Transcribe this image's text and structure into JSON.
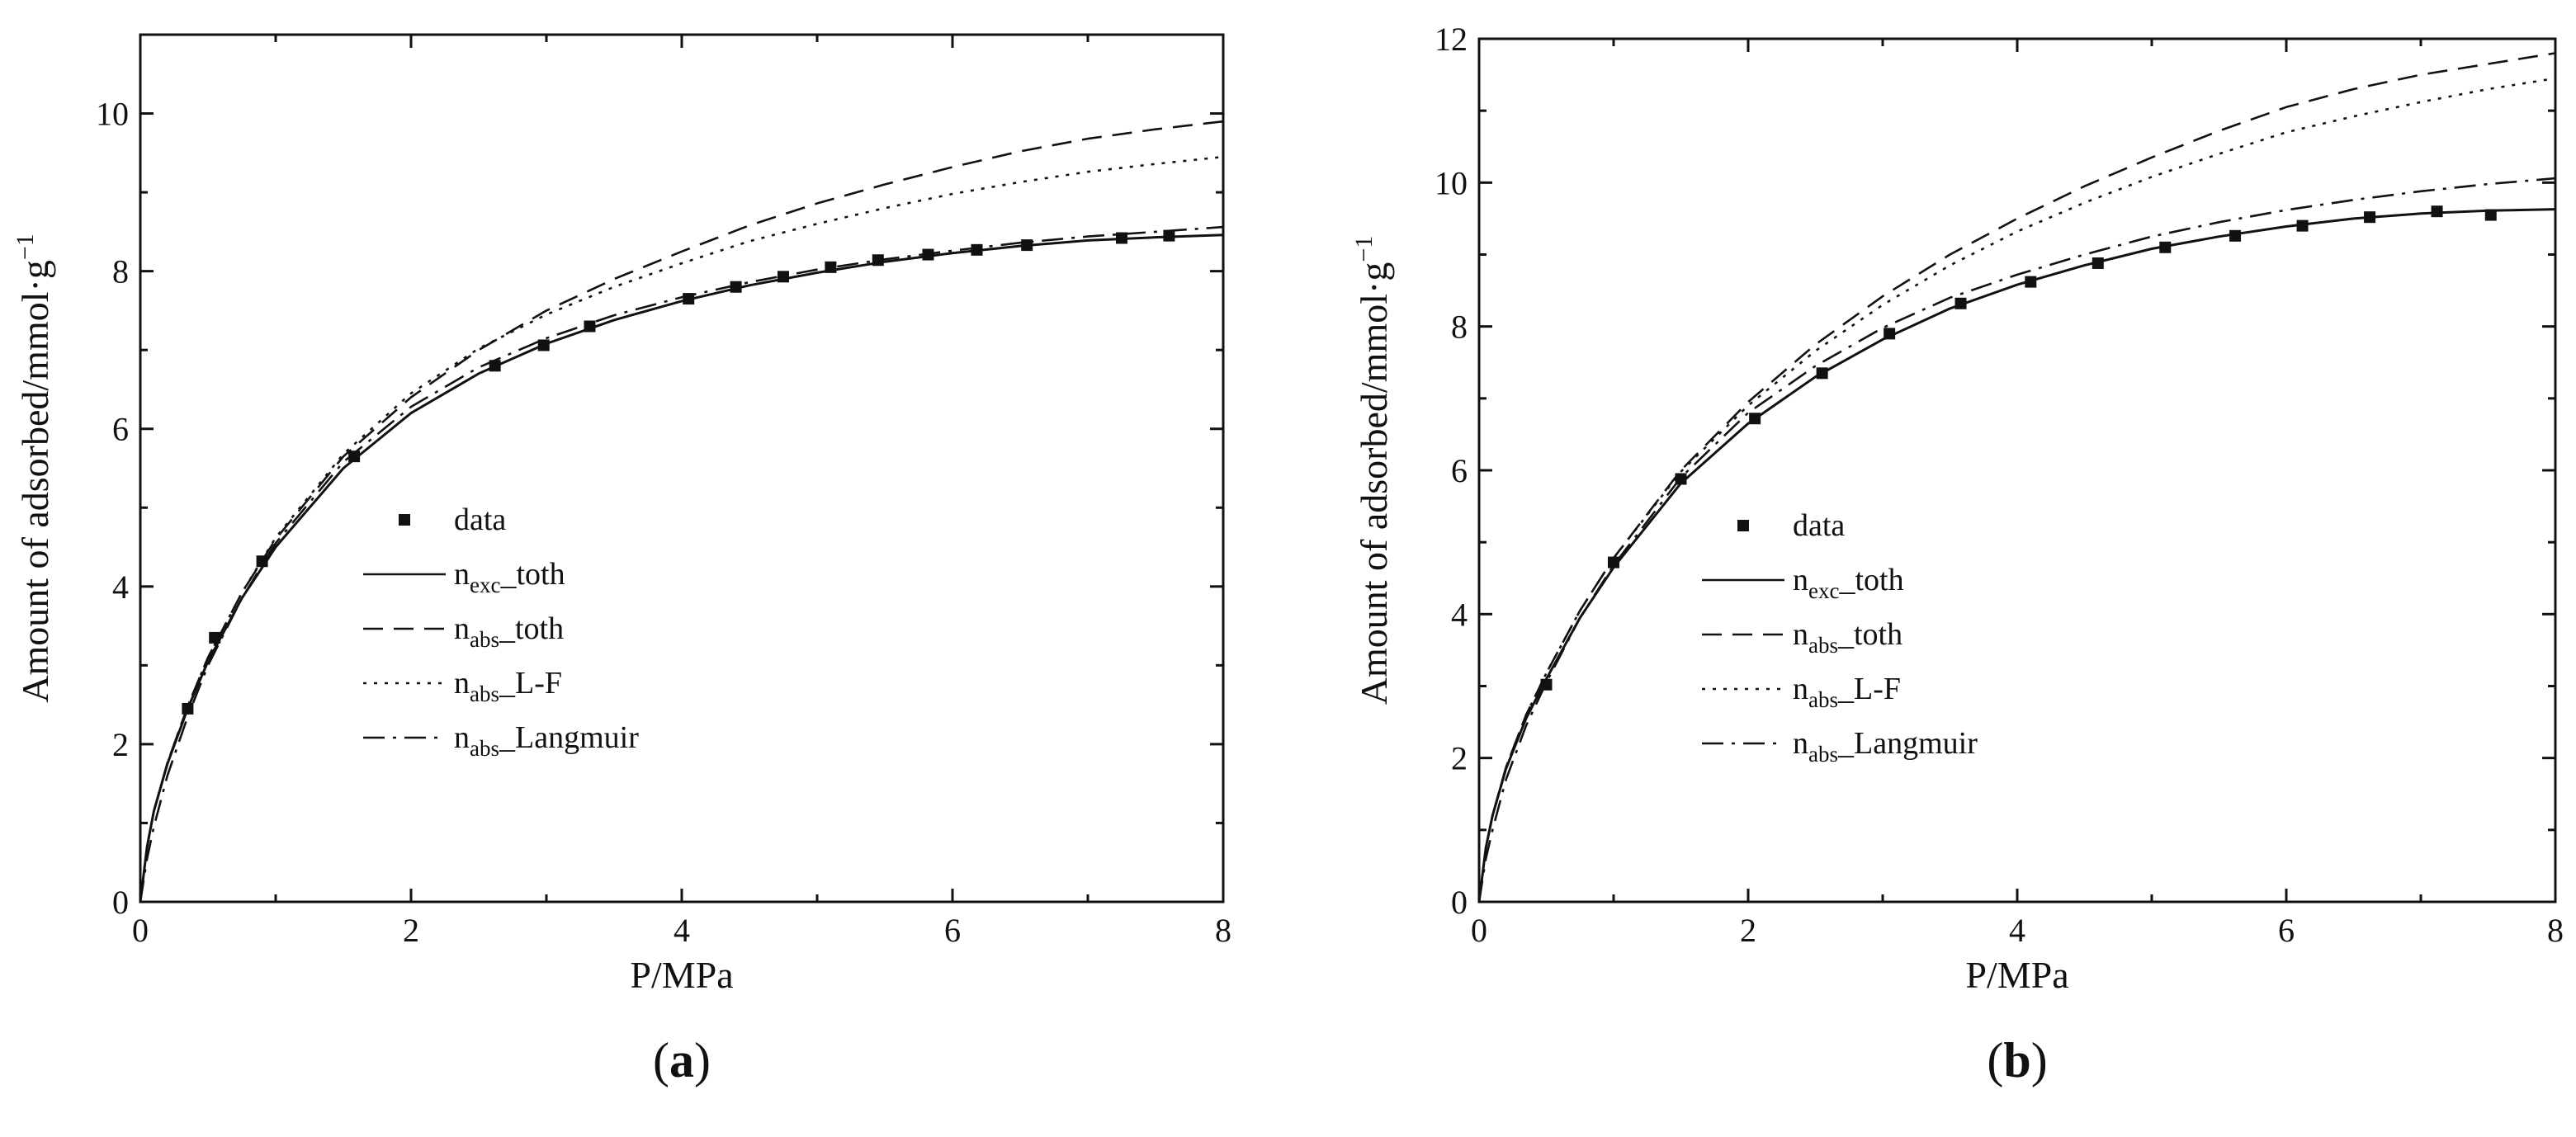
{
  "figure": {
    "panels": [
      {
        "panel_label": "(a)",
        "panel_label_letter": "a",
        "xlabel": "P/MPa",
        "ylabel_prefix": "Amount of adsorbed/mmol·g",
        "ylabel_superscript": "−1"
      },
      {
        "panel_label": "(b)",
        "panel_label_letter": "b",
        "xlabel": "P/MPa",
        "ylabel_prefix": "Amount of adsorbed/mmol·g",
        "ylabel_superscript": "−1"
      }
    ]
  },
  "legend": {
    "entries": [
      {
        "key": "data",
        "main": "data",
        "sub": "",
        "suffix": "",
        "style": "marker"
      },
      {
        "key": "exc_toth",
        "main": "n",
        "sub": "exc",
        "suffix": "_toth",
        "style": "solid"
      },
      {
        "key": "abs_toth",
        "main": "n",
        "sub": "abs",
        "suffix": "_toth",
        "style": "dashed"
      },
      {
        "key": "abs_lf",
        "main": "n",
        "sub": "abs",
        "suffix": "_L-F",
        "style": "dotted"
      },
      {
        "key": "abs_langmuir",
        "main": "n",
        "sub": "abs",
        "suffix": "_Langmuir",
        "style": "dashdot"
      }
    ]
  },
  "colors": {
    "ink": "#111111",
    "background": "#ffffff"
  },
  "chart_data": [
    {
      "type": "scatter",
      "panel": "a",
      "title": "",
      "xlabel": "P/MPa",
      "ylabel": "Amount of adsorbed/mmol·g−1",
      "xlim": [
        0,
        8
      ],
      "ylim": [
        0,
        11
      ],
      "xticks": [
        0,
        2,
        4,
        6,
        8
      ],
      "yticks": [
        0,
        2,
        4,
        6,
        8,
        10
      ],
      "legend_position": "center-left",
      "series": [
        {
          "name": "data",
          "style": "marker",
          "x": [
            0.35,
            0.55,
            0.9,
            1.58,
            2.62,
            2.98,
            3.32,
            4.05,
            4.4,
            4.75,
            5.1,
            5.45,
            5.82,
            6.18,
            6.55,
            7.25,
            7.6
          ],
          "y": [
            2.45,
            3.35,
            4.32,
            5.65,
            6.8,
            7.06,
            7.3,
            7.65,
            7.8,
            7.93,
            8.05,
            8.14,
            8.21,
            8.27,
            8.33,
            8.42,
            8.45
          ]
        },
        {
          "name": "n_exc_toth",
          "style": "solid",
          "x": [
            0,
            0.05,
            0.1,
            0.2,
            0.35,
            0.5,
            0.75,
            1.0,
            1.5,
            2.0,
            2.5,
            3.0,
            3.5,
            4.0,
            4.5,
            5.0,
            5.5,
            6.0,
            6.5,
            7.0,
            7.5,
            8.0
          ],
          "y": [
            0,
            0.7,
            1.15,
            1.75,
            2.45,
            3.05,
            3.85,
            4.5,
            5.5,
            6.2,
            6.7,
            7.08,
            7.38,
            7.62,
            7.82,
            7.98,
            8.12,
            8.23,
            8.32,
            8.39,
            8.43,
            8.46
          ]
        },
        {
          "name": "n_abs_toth",
          "style": "dashed",
          "x": [
            0,
            0.05,
            0.1,
            0.2,
            0.35,
            0.5,
            0.75,
            1.0,
            1.5,
            2.0,
            2.5,
            3.0,
            3.5,
            4.0,
            4.5,
            5.0,
            5.5,
            6.0,
            6.5,
            7.0,
            7.5,
            8.0
          ],
          "y": [
            0,
            0.7,
            1.15,
            1.76,
            2.48,
            3.1,
            3.92,
            4.6,
            5.65,
            6.4,
            7.0,
            7.5,
            7.9,
            8.25,
            8.58,
            8.86,
            9.1,
            9.32,
            9.52,
            9.68,
            9.8,
            9.9
          ]
        },
        {
          "name": "n_abs_L-F",
          "style": "dotted",
          "x": [
            0,
            0.05,
            0.1,
            0.2,
            0.35,
            0.5,
            0.75,
            1.0,
            1.5,
            2.0,
            2.5,
            3.0,
            3.5,
            4.0,
            4.5,
            5.0,
            5.5,
            6.0,
            6.5,
            7.0,
            7.5,
            8.0
          ],
          "y": [
            0,
            0.7,
            1.15,
            1.76,
            2.48,
            3.1,
            3.92,
            4.62,
            5.68,
            6.45,
            7.02,
            7.45,
            7.8,
            8.1,
            8.38,
            8.6,
            8.8,
            8.98,
            9.13,
            9.26,
            9.36,
            9.45
          ]
        },
        {
          "name": "n_abs_Langmuir",
          "style": "dashdot",
          "x": [
            0,
            0.05,
            0.1,
            0.2,
            0.35,
            0.5,
            0.75,
            1.0,
            1.5,
            2.0,
            2.5,
            3.0,
            3.5,
            4.0,
            4.5,
            5.0,
            5.5,
            6.0,
            6.5,
            7.0,
            7.5,
            8.0
          ],
          "y": [
            0,
            0.55,
            0.95,
            1.6,
            2.35,
            3.0,
            3.85,
            4.55,
            5.58,
            6.28,
            6.78,
            7.15,
            7.44,
            7.67,
            7.86,
            8.02,
            8.15,
            8.26,
            8.36,
            8.44,
            8.5,
            8.56
          ]
        }
      ]
    },
    {
      "type": "scatter",
      "panel": "b",
      "title": "",
      "xlabel": "P/MPa",
      "ylabel": "Amount of adsorbed/mmol·g−1",
      "xlim": [
        0,
        8
      ],
      "ylim": [
        0,
        12
      ],
      "xticks": [
        0,
        2,
        4,
        6,
        8
      ],
      "yticks": [
        0,
        2,
        4,
        6,
        8,
        10,
        12
      ],
      "legend_position": "center",
      "series": [
        {
          "name": "data",
          "style": "marker",
          "x": [
            0.5,
            1.0,
            1.5,
            2.05,
            2.55,
            3.05,
            3.58,
            4.1,
            4.6,
            5.1,
            5.62,
            6.12,
            6.62,
            7.12,
            7.52
          ],
          "y": [
            3.02,
            4.72,
            5.88,
            6.72,
            7.35,
            7.9,
            8.32,
            8.62,
            8.88,
            9.1,
            9.26,
            9.4,
            9.52,
            9.6,
            9.55
          ]
        },
        {
          "name": "n_exc_toth",
          "style": "solid",
          "x": [
            0,
            0.05,
            0.1,
            0.2,
            0.35,
            0.5,
            0.75,
            1.0,
            1.5,
            2.0,
            2.5,
            3.0,
            3.5,
            4.0,
            4.5,
            5.0,
            5.5,
            6.0,
            6.5,
            7.0,
            7.5,
            8.0
          ],
          "y": [
            0,
            0.75,
            1.2,
            1.85,
            2.55,
            3.1,
            3.95,
            4.65,
            5.82,
            6.65,
            7.3,
            7.82,
            8.25,
            8.58,
            8.85,
            9.08,
            9.25,
            9.39,
            9.5,
            9.57,
            9.61,
            9.63
          ]
        },
        {
          "name": "n_abs_toth",
          "style": "dashed",
          "x": [
            0,
            0.05,
            0.1,
            0.2,
            0.35,
            0.5,
            0.75,
            1.0,
            1.5,
            2.0,
            2.5,
            3.0,
            3.5,
            4.0,
            4.5,
            5.0,
            5.5,
            6.0,
            6.5,
            7.0,
            7.5,
            8.0
          ],
          "y": [
            0,
            0.75,
            1.2,
            1.87,
            2.6,
            3.18,
            4.05,
            4.78,
            6.0,
            6.95,
            7.75,
            8.42,
            9.0,
            9.5,
            9.95,
            10.35,
            10.72,
            11.05,
            11.3,
            11.5,
            11.65,
            11.8
          ]
        },
        {
          "name": "n_abs_L-F",
          "style": "dotted",
          "x": [
            0,
            0.05,
            0.1,
            0.2,
            0.35,
            0.5,
            0.75,
            1.0,
            1.5,
            2.0,
            2.5,
            3.0,
            3.5,
            4.0,
            4.5,
            5.0,
            5.5,
            6.0,
            6.5,
            7.0,
            7.5,
            8.0
          ],
          "y": [
            0,
            0.75,
            1.2,
            1.87,
            2.6,
            3.18,
            4.05,
            4.78,
            5.98,
            6.9,
            7.66,
            8.3,
            8.85,
            9.32,
            9.72,
            10.08,
            10.4,
            10.7,
            10.92,
            11.12,
            11.3,
            11.45
          ]
        },
        {
          "name": "n_abs_Langmuir",
          "style": "dashdot",
          "x": [
            0,
            0.05,
            0.1,
            0.2,
            0.35,
            0.5,
            0.75,
            1.0,
            1.5,
            2.0,
            2.5,
            3.0,
            3.5,
            4.0,
            4.5,
            5.0,
            5.5,
            6.0,
            6.5,
            7.0,
            7.5,
            8.0
          ],
          "y": [
            0,
            0.6,
            1.0,
            1.7,
            2.45,
            3.05,
            3.95,
            4.68,
            5.9,
            6.8,
            7.45,
            7.98,
            8.4,
            8.72,
            9.0,
            9.25,
            9.45,
            9.62,
            9.76,
            9.88,
            9.98,
            10.06
          ]
        }
      ]
    }
  ]
}
